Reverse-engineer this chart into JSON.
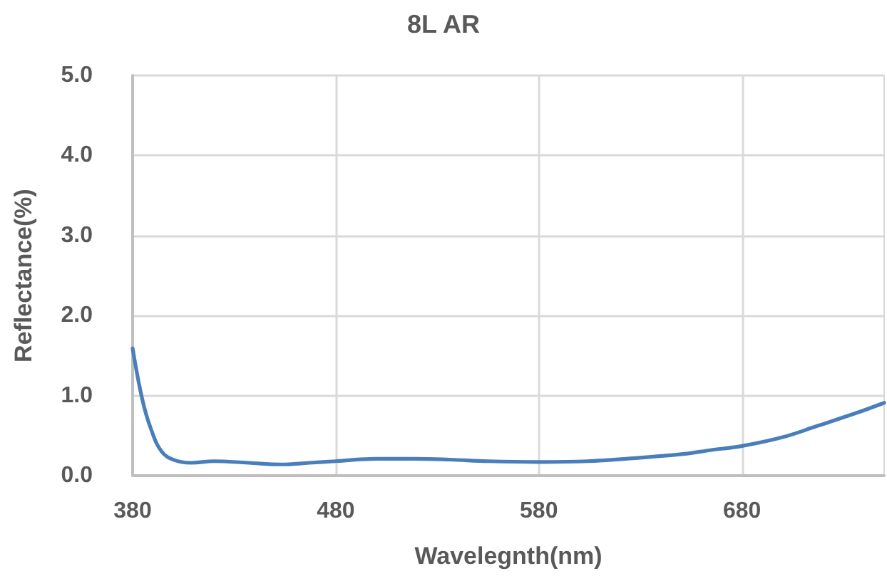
{
  "chart_data": {
    "type": "line",
    "title": "8L AR",
    "xlabel": "Wavelegnth(nm)",
    "ylabel": "Reflectance(%)",
    "x": [
      380,
      384.7,
      388.8,
      394.3,
      401,
      409,
      420,
      437,
      453,
      467,
      480,
      500,
      519,
      536,
      555,
      580,
      604,
      623,
      651,
      665,
      680,
      700,
      717,
      736,
      750
    ],
    "series": [
      {
        "color": "#4a7ebb",
        "values": [
          1.59,
          0.96,
          0.6,
          0.3,
          0.19,
          0.16,
          0.18,
          0.16,
          0.14,
          0.16,
          0.18,
          0.21,
          0.21,
          0.2,
          0.18,
          0.17,
          0.18,
          0.21,
          0.27,
          0.32,
          0.37,
          0.48,
          0.62,
          0.78,
          0.91
        ]
      }
    ],
    "xlim": [
      380,
      750
    ],
    "xticks": [
      380,
      480,
      580,
      680
    ],
    "ylim": [
      0,
      5
    ],
    "yticks": [
      {
        "value": 0,
        "label": "0.0"
      },
      {
        "value": 1,
        "label": "1.0"
      },
      {
        "value": 2,
        "label": "2.0"
      },
      {
        "value": 3,
        "label": "3.0"
      },
      {
        "value": 4,
        "label": "4.0"
      },
      {
        "value": 5,
        "label": "5.0"
      }
    ],
    "grid": true,
    "marker": "none"
  }
}
